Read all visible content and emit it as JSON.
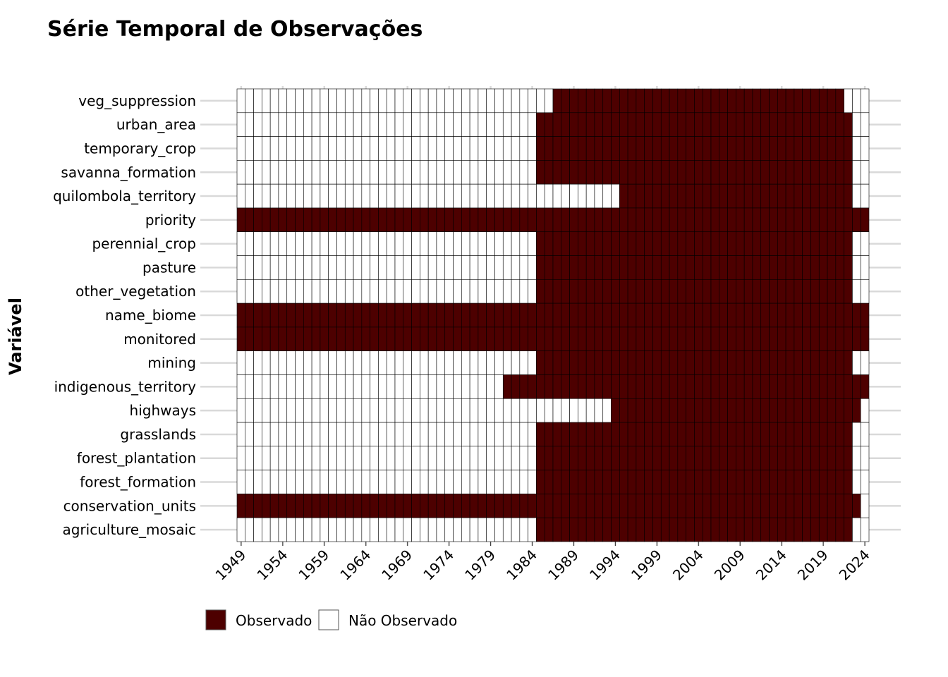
{
  "chart_data": {
    "type": "heatmap",
    "title": "Série Temporal de Observações",
    "xlabel": "",
    "ylabel": "Variável",
    "x_range": [
      1949,
      2024
    ],
    "x_ticks": [
      1949,
      1954,
      1959,
      1964,
      1969,
      1974,
      1979,
      1984,
      1989,
      1994,
      1999,
      2004,
      2009,
      2014,
      2019,
      2024
    ],
    "colors": {
      "observed": "#4d0000",
      "not_observed": "#ffffff",
      "cell_border": "#000000",
      "grid": "#d9d9d9"
    },
    "legend": {
      "position": "bottom-left",
      "items": [
        {
          "label": "Observado",
          "state": "observed"
        },
        {
          "label": "Não Observado",
          "state": "not_observed"
        }
      ]
    },
    "series": [
      {
        "name": "veg_suppression",
        "observed_from": 1987,
        "observed_to": 2021
      },
      {
        "name": "urban_area",
        "observed_from": 1985,
        "observed_to": 2022
      },
      {
        "name": "temporary_crop",
        "observed_from": 1985,
        "observed_to": 2022
      },
      {
        "name": "savanna_formation",
        "observed_from": 1985,
        "observed_to": 2022
      },
      {
        "name": "quilombola_territory",
        "observed_from": 1995,
        "observed_to": 2022
      },
      {
        "name": "priority",
        "observed_from": 1949,
        "observed_to": 2024
      },
      {
        "name": "perennial_crop",
        "observed_from": 1985,
        "observed_to": 2022
      },
      {
        "name": "pasture",
        "observed_from": 1985,
        "observed_to": 2022
      },
      {
        "name": "other_vegetation",
        "observed_from": 1985,
        "observed_to": 2022
      },
      {
        "name": "name_biome",
        "observed_from": 1949,
        "observed_to": 2024
      },
      {
        "name": "monitored",
        "observed_from": 1949,
        "observed_to": 2024
      },
      {
        "name": "mining",
        "observed_from": 1985,
        "observed_to": 2022
      },
      {
        "name": "indigenous_territory",
        "observed_from": 1981,
        "observed_to": 2024
      },
      {
        "name": "highways",
        "observed_from": 1994,
        "observed_to": 2023
      },
      {
        "name": "grasslands",
        "observed_from": 1985,
        "observed_to": 2022
      },
      {
        "name": "forest_plantation",
        "observed_from": 1985,
        "observed_to": 2022
      },
      {
        "name": "forest_formation",
        "observed_from": 1985,
        "observed_to": 2022
      },
      {
        "name": "conservation_units",
        "observed_from": 1949,
        "observed_to": 2023
      },
      {
        "name": "agriculture_mosaic",
        "observed_from": 1985,
        "observed_to": 2022
      }
    ]
  }
}
